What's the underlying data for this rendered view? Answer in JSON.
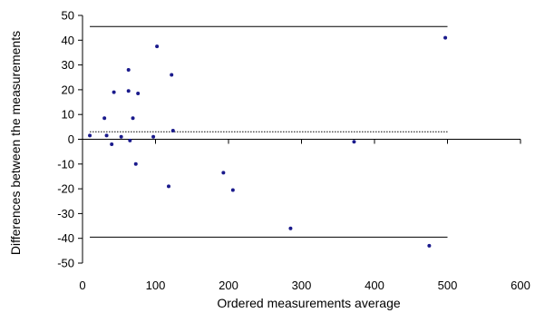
{
  "chart_data": {
    "type": "scatter",
    "xlabel": "Ordered measurements average",
    "ylabel": "Differences between the measurements",
    "xlim": [
      0,
      600
    ],
    "ylim": [
      -50,
      50
    ],
    "x_ticks": [
      0,
      100,
      200,
      300,
      400,
      500,
      600
    ],
    "y_ticks": [
      -50,
      -40,
      -30,
      -20,
      -10,
      0,
      10,
      20,
      30,
      40,
      50
    ],
    "grid": false,
    "series": [
      {
        "color": "#1a1a8c",
        "points": [
          {
            "x": 10,
            "y": 1.5
          },
          {
            "x": 30,
            "y": 8.5
          },
          {
            "x": 33,
            "y": 1.5
          },
          {
            "x": 40,
            "y": -2
          },
          {
            "x": 43,
            "y": 19
          },
          {
            "x": 53,
            "y": 1
          },
          {
            "x": 63,
            "y": 28
          },
          {
            "x": 63,
            "y": 19.5
          },
          {
            "x": 65,
            "y": -0.5
          },
          {
            "x": 69,
            "y": 8.5
          },
          {
            "x": 73,
            "y": -10
          },
          {
            "x": 76,
            "y": 18.5
          },
          {
            "x": 97,
            "y": 1
          },
          {
            "x": 102,
            "y": 37.5
          },
          {
            "x": 118,
            "y": -19
          },
          {
            "x": 122,
            "y": 26
          },
          {
            "x": 124,
            "y": 3.5
          },
          {
            "x": 193,
            "y": -13.5
          },
          {
            "x": 206,
            "y": -20.5
          },
          {
            "x": 285,
            "y": -36
          },
          {
            "x": 372,
            "y": -1
          },
          {
            "x": 475,
            "y": -43
          },
          {
            "x": 497,
            "y": 41
          }
        ]
      }
    ],
    "reference_lines": [
      {
        "y": 45.5,
        "style": "solid",
        "x_from": 10,
        "x_to": 500
      },
      {
        "y": 3,
        "style": "dotted",
        "x_from": 10,
        "x_to": 500
      },
      {
        "y": -39.5,
        "style": "solid",
        "x_from": 10,
        "x_to": 500
      }
    ]
  }
}
